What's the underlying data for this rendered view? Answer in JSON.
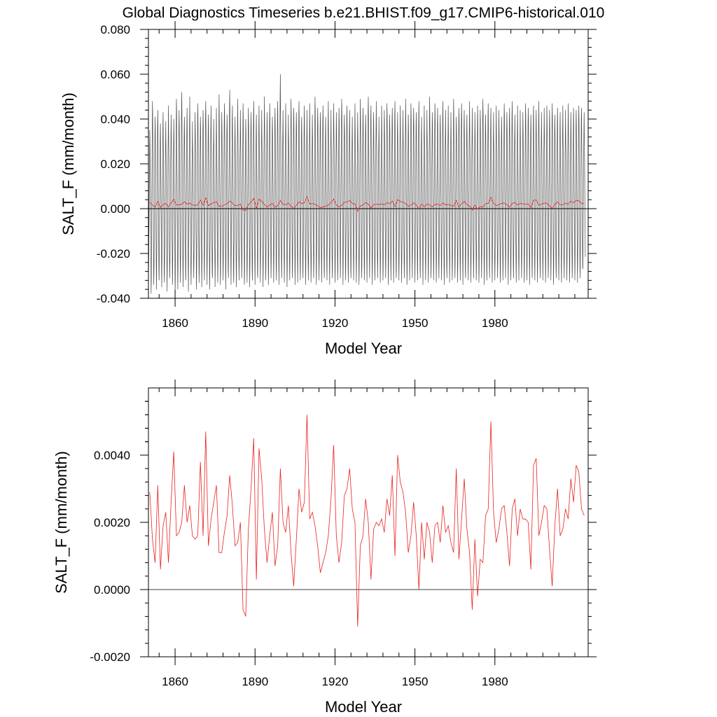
{
  "title": "Global Diagnostics Timeseries b.e21.BHIST.f09_g17.CMIP6-historical.010",
  "colors": {
    "monthly": "#4d4d4d",
    "annual": "#e8231f",
    "zero_line": "#000000"
  },
  "chart_data": [
    {
      "type": "line",
      "xlabel": "Model Year",
      "ylabel": "SALT_F (mm/month)",
      "xlim": [
        1850,
        2015
      ],
      "ylim": [
        -0.04,
        0.08
      ],
      "x_ticks": [
        1860,
        1890,
        1920,
        1950,
        1980
      ],
      "x_tick_labels": [
        "1860",
        "1890",
        "1920",
        "1950",
        "1980"
      ],
      "y_ticks": [
        -0.04,
        -0.02,
        0.0,
        0.02,
        0.04,
        0.06,
        0.08
      ],
      "y_tick_labels": [
        "-0.040",
        "-0.020",
        "0.000",
        "0.020",
        "0.040",
        "0.060",
        "0.080"
      ],
      "grid": false,
      "series": [
        {
          "kind": "monthly",
          "color": "#4d4d4d",
          "note_hidden": "",
          "start_year": 1850,
          "peaks": [
            0.035,
            0.048,
            0.041,
            0.044,
            0.038,
            0.043,
            0.039,
            0.046,
            0.042,
            0.04,
            0.049,
            0.044,
            0.052,
            0.041,
            0.045,
            0.05,
            0.039,
            0.043,
            0.047,
            0.041,
            0.044,
            0.048,
            0.042,
            0.046,
            0.04,
            0.045,
            0.051,
            0.043,
            0.047,
            0.042,
            0.053,
            0.046,
            0.041,
            0.049,
            0.044,
            0.047,
            0.04,
            0.045,
            0.043,
            0.048,
            0.042,
            0.046,
            0.044,
            0.05,
            0.043,
            0.047,
            0.041,
            0.045,
            0.048,
            0.06,
            0.044,
            0.047,
            0.042,
            0.049,
            0.045,
            0.043,
            0.048,
            0.041,
            0.046,
            0.044,
            0.047,
            0.042,
            0.05,
            0.045,
            0.043,
            0.046,
            0.041,
            0.048,
            0.044,
            0.047,
            0.043,
            0.045,
            0.049,
            0.042,
            0.046,
            0.044,
            0.041,
            0.047,
            0.043,
            0.049,
            0.045,
            0.042,
            0.05,
            0.046,
            0.043,
            0.048,
            0.041,
            0.046,
            0.044,
            0.047,
            0.042,
            0.045,
            0.048,
            0.043,
            0.046,
            0.044,
            0.049,
            0.042,
            0.047,
            0.045,
            0.043,
            0.048,
            0.041,
            0.046,
            0.044,
            0.05,
            0.043,
            0.047,
            0.045,
            0.042,
            0.048,
            0.044,
            0.046,
            0.043,
            0.049,
            0.041,
            0.045,
            0.047,
            0.044,
            0.042,
            0.048,
            0.045,
            0.043,
            0.046,
            0.044,
            0.049,
            0.042,
            0.047,
            0.045,
            0.043,
            0.046,
            0.044,
            0.041,
            0.047,
            0.043,
            0.045,
            0.048,
            0.042,
            0.046,
            0.044,
            0.043,
            0.047,
            0.045,
            0.042,
            0.046,
            0.044,
            0.048,
            0.043,
            0.045,
            0.046,
            0.044,
            0.047,
            0.042,
            0.045,
            0.043,
            0.046,
            0.044,
            0.047,
            0.043,
            0.045,
            0.044,
            0.046,
            0.045,
            0.043,
            0.044,
            0.045,
            0.046
          ],
          "troughs": [
            -0.031,
            -0.038,
            -0.034,
            -0.036,
            -0.032,
            -0.035,
            -0.033,
            -0.037,
            -0.031,
            -0.034,
            -0.038,
            -0.036,
            -0.033,
            -0.035,
            -0.032,
            -0.037,
            -0.034,
            -0.031,
            -0.036,
            -0.033,
            -0.035,
            -0.032,
            -0.034,
            -0.036,
            -0.031,
            -0.035,
            -0.033,
            -0.034,
            -0.032,
            -0.036,
            -0.031,
            -0.034,
            -0.033,
            -0.035,
            -0.032,
            -0.031,
            -0.034,
            -0.033,
            -0.035,
            -0.032,
            -0.034,
            -0.031,
            -0.033,
            -0.035,
            -0.032,
            -0.034,
            -0.031,
            -0.033,
            -0.032,
            -0.034,
            -0.031,
            -0.033,
            -0.035,
            -0.032,
            -0.031,
            -0.034,
            -0.033,
            -0.032,
            -0.031,
            -0.034,
            -0.032,
            -0.033,
            -0.031,
            -0.034,
            -0.032,
            -0.033,
            -0.031,
            -0.032,
            -0.034,
            -0.031,
            -0.033,
            -0.032,
            -0.031,
            -0.034,
            -0.032,
            -0.033,
            -0.031,
            -0.032,
            -0.033,
            -0.034,
            -0.031,
            -0.032,
            -0.033,
            -0.031,
            -0.034,
            -0.032,
            -0.031,
            -0.033,
            -0.032,
            -0.031,
            -0.034,
            -0.032,
            -0.033,
            -0.031,
            -0.032,
            -0.033,
            -0.031,
            -0.034,
            -0.032,
            -0.031,
            -0.033,
            -0.032,
            -0.031,
            -0.034,
            -0.032,
            -0.033,
            -0.031,
            -0.032,
            -0.033,
            -0.031,
            -0.032,
            -0.034,
            -0.031,
            -0.033,
            -0.032,
            -0.031,
            -0.033,
            -0.032,
            -0.034,
            -0.031,
            -0.032,
            -0.033,
            -0.031,
            -0.032,
            -0.033,
            -0.031,
            -0.034,
            -0.032,
            -0.031,
            -0.033,
            -0.032,
            -0.031,
            -0.033,
            -0.032,
            -0.031,
            -0.034,
            -0.032,
            -0.031,
            -0.033,
            -0.032,
            -0.031,
            -0.033,
            -0.032,
            -0.034,
            -0.031,
            -0.032,
            -0.033,
            -0.031,
            -0.032,
            -0.033,
            -0.031,
            -0.032,
            -0.034,
            -0.031,
            -0.032,
            -0.033,
            -0.031,
            -0.032,
            -0.033,
            -0.031,
            -0.032,
            -0.033,
            -0.031,
            -0.027
          ]
        },
        {
          "kind": "annual_mean",
          "color": "#e8231f",
          "ref": "annual"
        }
      ]
    },
    {
      "type": "line",
      "xlabel": "Model Year",
      "ylabel": "SALT_F (mm/month)",
      "xlim": [
        1850,
        2015
      ],
      "ylim": [
        -0.002,
        0.006
      ],
      "x_ticks": [
        1860,
        1890,
        1920,
        1950,
        1980
      ],
      "x_tick_labels": [
        "1860",
        "1890",
        "1920",
        "1950",
        "1980"
      ],
      "y_ticks": [
        -0.002,
        0.0,
        0.002,
        0.004
      ],
      "y_tick_labels": [
        "-0.0020",
        "0.0000",
        "0.0020",
        "0.0040"
      ],
      "grid": false,
      "series": [
        {
          "kind": "annual_mean",
          "color": "#e8231f",
          "x_start": 1850,
          "x_step": 1,
          "values": [
            0.0029,
            0.0015,
            0.0008,
            0.0031,
            0.0006,
            0.0019,
            0.0023,
            0.0008,
            0.0026,
            0.0041,
            0.0016,
            0.0017,
            0.002,
            0.0031,
            0.002,
            0.0025,
            0.0016,
            0.0015,
            0.0016,
            0.0038,
            0.0016,
            0.0047,
            0.0013,
            0.0021,
            0.0026,
            0.0031,
            0.0011,
            0.0011,
            0.0017,
            0.0022,
            0.0034,
            0.0025,
            0.0013,
            0.0014,
            0.002,
            -0.0006,
            -0.0008,
            0.0018,
            0.003,
            0.0045,
            0.0003,
            0.0042,
            0.0033,
            0.0018,
            0.0008,
            0.0016,
            0.0023,
            0.0007,
            0.0013,
            0.0036,
            0.002,
            0.0017,
            0.0025,
            0.0011,
            0.0001,
            0.0015,
            0.003,
            0.0023,
            0.0026,
            0.0052,
            0.0021,
            0.0023,
            0.0019,
            0.0013,
            0.0005,
            0.0008,
            0.0011,
            0.0016,
            0.0027,
            0.0043,
            0.0016,
            0.0008,
            0.0014,
            0.0028,
            0.003,
            0.0036,
            0.0024,
            0.002,
            -0.0011,
            0.0013,
            0.0016,
            0.0027,
            0.002,
            0.0003,
            0.0018,
            0.002,
            0.0019,
            0.0021,
            0.0017,
            0.0027,
            0.0022,
            0.0034,
            0.001,
            0.004,
            0.0032,
            0.0029,
            0.0023,
            0.0011,
            0.0016,
            0.0026,
            0.0016,
            0.0,
            0.002,
            0.0009,
            0.002,
            0.0017,
            0.0008,
            0.0019,
            0.002,
            0.0014,
            0.0025,
            0.0017,
            0.0019,
            0.0014,
            0.0011,
            0.0036,
            0.0009,
            0.0021,
            0.0033,
            0.0018,
            0.0011,
            -0.0006,
            0.0015,
            -0.0002,
            0.0009,
            0.0008,
            0.0022,
            0.0024,
            0.005,
            0.0023,
            0.0014,
            0.0018,
            0.0024,
            0.0025,
            0.0017,
            0.0007,
            0.0024,
            0.0027,
            0.0016,
            0.0024,
            0.0021,
            0.0021,
            0.002,
            0.0006,
            0.0037,
            0.0039,
            0.0016,
            0.002,
            0.0025,
            0.0024,
            0.0012,
            0.0001,
            0.0019,
            0.003,
            0.0016,
            0.0018,
            0.0024,
            0.0021,
            0.0033,
            0.0026,
            0.0037,
            0.0035,
            0.0024,
            0.0022
          ]
        }
      ]
    }
  ]
}
